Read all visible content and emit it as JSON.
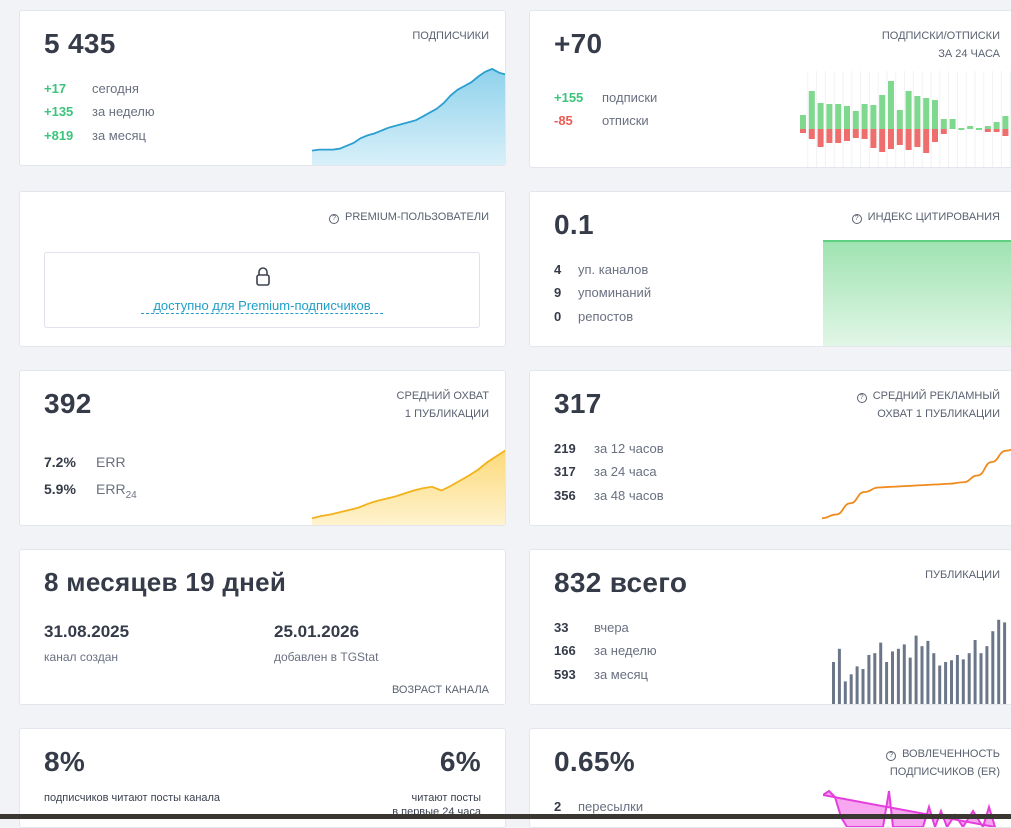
{
  "subscribers": {
    "value": "5 435",
    "label": "подписчики",
    "stats": [
      {
        "num": "+17",
        "text": "сегодня"
      },
      {
        "num": "+135",
        "text": "за неделю"
      },
      {
        "num": "+819",
        "text": "за месяц"
      }
    ],
    "trend": [
      0.12,
      0.13,
      0.13,
      0.13,
      0.14,
      0.17,
      0.2,
      0.25,
      0.28,
      0.3,
      0.33,
      0.36,
      0.38,
      0.4,
      0.42,
      0.44,
      0.48,
      0.52,
      0.56,
      0.62,
      0.7,
      0.76,
      0.8,
      0.84,
      0.9,
      0.95,
      0.98,
      0.94,
      0.92
    ]
  },
  "sub_unsub": {
    "value": "+70",
    "label_line1": "подписки/отписки",
    "label_line2": "за 24 часа",
    "stats": [
      {
        "num": "+155",
        "text": "подписки"
      },
      {
        "num": "-85",
        "text": "отписки"
      }
    ],
    "bars": [
      {
        "up": 14,
        "down": 4
      },
      {
        "up": 38,
        "down": 10
      },
      {
        "up": 26,
        "down": 18
      },
      {
        "up": 25,
        "down": 14
      },
      {
        "up": 25,
        "down": 14
      },
      {
        "up": 23,
        "down": 12
      },
      {
        "up": 18,
        "down": 9
      },
      {
        "up": 25,
        "down": 10
      },
      {
        "up": 24,
        "down": 19
      },
      {
        "up": 34,
        "down": 23
      },
      {
        "up": 48,
        "down": 20
      },
      {
        "up": 19,
        "down": 16
      },
      {
        "up": 38,
        "down": 21
      },
      {
        "up": 33,
        "down": 18
      },
      {
        "up": 31,
        "down": 24
      },
      {
        "up": 29,
        "down": 13
      },
      {
        "up": 10,
        "down": 5
      },
      {
        "up": 10,
        "down": 0
      },
      {
        "up": 0,
        "down": 0
      },
      {
        "up": 3,
        "down": 0
      },
      {
        "up": 0,
        "down": 0
      },
      {
        "up": 3,
        "down": 3
      },
      {
        "up": 7,
        "down": 3
      },
      {
        "up": 13,
        "down": 7
      },
      {
        "up": 16,
        "down": 4
      }
    ],
    "colors": {
      "up": "#7ed98e",
      "down": "#ee6d6d"
    }
  },
  "premium": {
    "label": "premium-пользователи",
    "link": "доступно для Premium-подписчиков"
  },
  "citation": {
    "value": "0.1",
    "label": "индекс цитирования",
    "stats": [
      {
        "num": "4",
        "text": "уп. каналов"
      },
      {
        "num": "9",
        "text": "упоминаний"
      },
      {
        "num": "0",
        "text": "репостов"
      }
    ]
  },
  "avg_reach": {
    "value": "392",
    "label_line1": "средний охват",
    "label_line2": "1 публикации",
    "err": [
      {
        "num": "7.2%",
        "text": "ERR"
      },
      {
        "num": "5.9%",
        "text": "ERR",
        "sub": "24"
      }
    ],
    "trend": [
      0.05,
      0.08,
      0.1,
      0.13,
      0.16,
      0.19,
      0.24,
      0.28,
      0.31,
      0.34,
      0.38,
      0.42,
      0.45,
      0.47,
      0.42,
      0.48,
      0.55,
      0.62,
      0.7,
      0.8,
      0.88,
      0.96
    ]
  },
  "ad_reach": {
    "value": "317",
    "label_line1": "средний рекламный",
    "label_line2": "охват 1 публикации",
    "stats": [
      {
        "num": "219",
        "text": "за 12 часов"
      },
      {
        "num": "317",
        "text": "за 24 часа"
      },
      {
        "num": "356",
        "text": "за 48 часов"
      }
    ],
    "trend": [
      0.05,
      0.1,
      0.25,
      0.4,
      0.46,
      0.47,
      0.48,
      0.49,
      0.5,
      0.51,
      0.53,
      0.62,
      0.8,
      0.95,
      1.0
    ]
  },
  "age": {
    "value": "8 месяцев 19 дней",
    "created_date": "31.08.2025",
    "created_label": "канал создан",
    "added_date": "25.01.2026",
    "added_label": "добавлен в TGStat",
    "footer": "возраст канала"
  },
  "publications": {
    "value": "832 всего",
    "label": "публикации",
    "stats": [
      {
        "num": "33",
        "text": "вчера"
      },
      {
        "num": "166",
        "text": "за неделю"
      },
      {
        "num": "593",
        "text": "за месяц"
      }
    ],
    "bars": [
      0.5,
      0.65,
      0.28,
      0.36,
      0.45,
      0.42,
      0.58,
      0.6,
      0.72,
      0.5,
      0.62,
      0.65,
      0.7,
      0.55,
      0.8,
      0.68,
      0.74,
      0.6,
      0.46,
      0.5,
      0.52,
      0.58,
      0.53,
      0.6,
      0.75,
      0.6,
      0.68,
      0.85,
      0.98,
      0.95
    ],
    "color": "#6b7789"
  },
  "read_share": {
    "left_value": "8%",
    "left_text": "подписчиков читают посты канала",
    "right_value": "6%",
    "right_text_line1": "читают посты",
    "right_text_line2": "в первые 24 часа"
  },
  "engagement": {
    "value": "0.65%",
    "label_line1": "вовлеченность",
    "label_line2": "подписчиков (ER)",
    "stats": [
      {
        "num": "2",
        "text": "пересылки"
      }
    ]
  }
}
